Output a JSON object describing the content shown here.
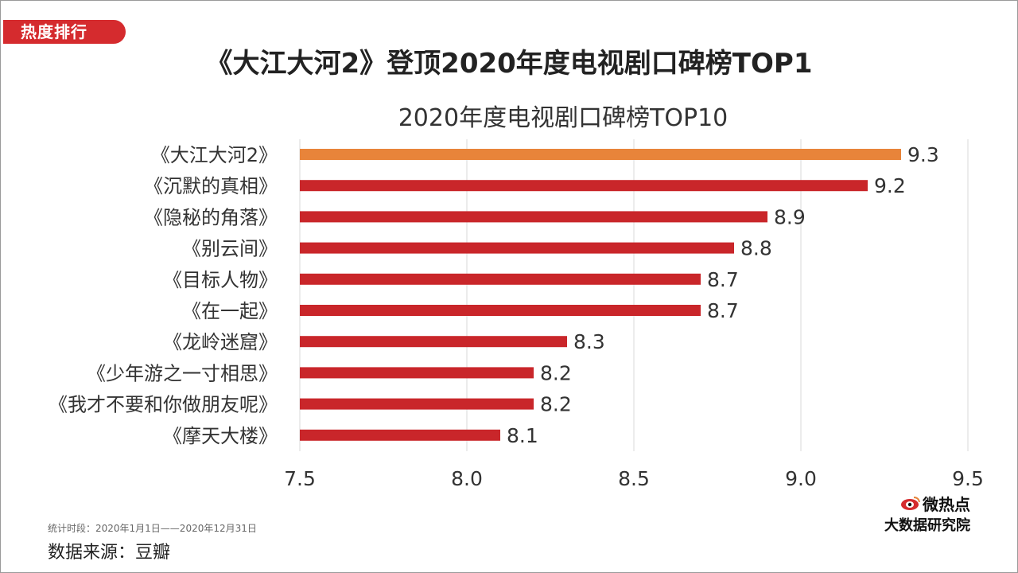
{
  "badge": "热度排行",
  "headline": "《大江大河2》登顶2020年度电视剧口碑榜TOP1",
  "footer": {
    "period": "统计时段：2020年1月1日——2020年12月31日",
    "source": "数据来源：豆瓣"
  },
  "logo": {
    "line1": "微热点",
    "line2": "大数据研究院",
    "icon": "weibo-eye-icon"
  },
  "colors": {
    "badge": "#d52b2e",
    "bar": "#c9262a",
    "highlight_bar": "#e8843a",
    "grid": "#d9d9d9"
  },
  "chart_data": {
    "type": "bar",
    "orientation": "horizontal",
    "title": "2020年度电视剧口碑榜TOP10",
    "categories": [
      "《大江大河2》",
      "《沉默的真相》",
      "《隐秘的角落》",
      "《别云间》",
      "《目标人物》",
      "《在一起》",
      "《龙岭迷窟》",
      "《少年游之一寸相思》",
      "《我才不要和你做朋友呢》",
      "《摩天大楼》"
    ],
    "values": [
      9.3,
      9.2,
      8.9,
      8.8,
      8.7,
      8.7,
      8.3,
      8.2,
      8.2,
      8.1
    ],
    "value_labels": [
      "9.3",
      "9.2",
      "8.9",
      "8.8",
      "8.7",
      "8.7",
      "8.3",
      "8.2",
      "8.2",
      "8.1"
    ],
    "highlight_index": 0,
    "xlim": [
      7.5,
      9.5
    ],
    "xticks": [
      "7.5",
      "8.0",
      "8.5",
      "9.0",
      "9.5"
    ],
    "xtick_values": [
      7.5,
      8.0,
      8.5,
      9.0,
      9.5
    ],
    "grid": true,
    "data_labels": true,
    "legend": "none"
  }
}
